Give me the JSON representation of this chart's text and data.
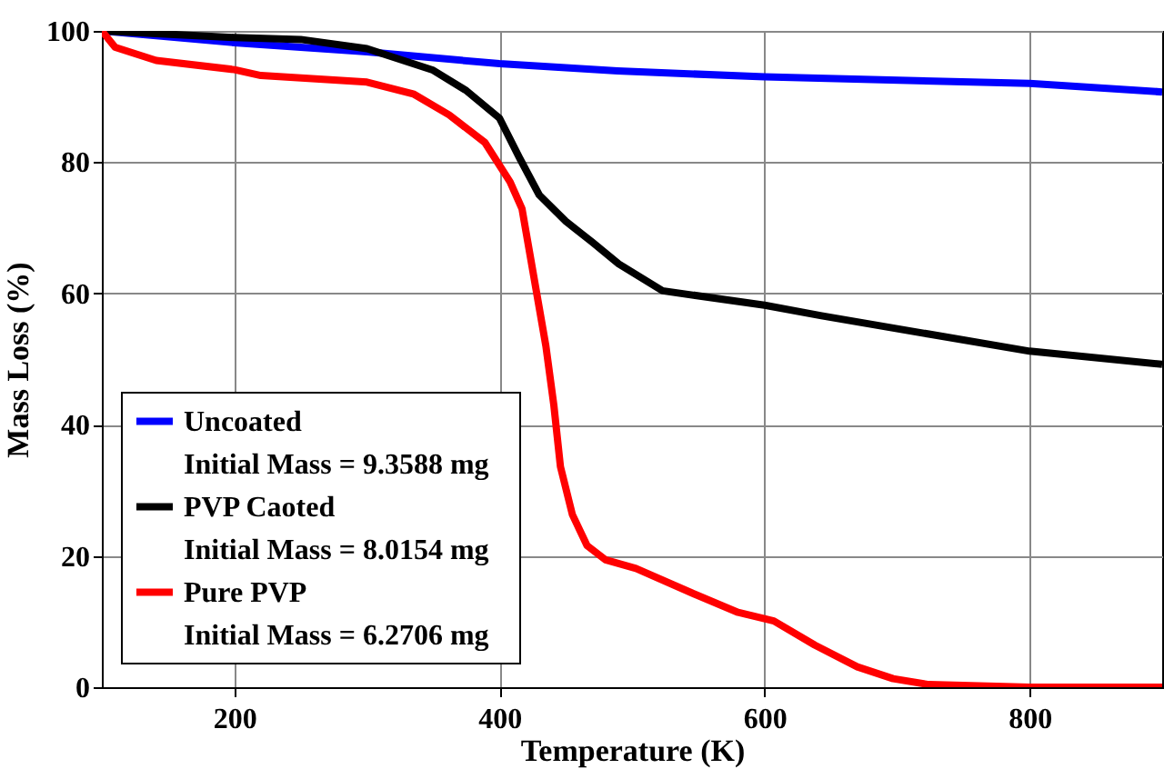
{
  "chart_data": {
    "type": "line",
    "xlabel": "Temperature (K)",
    "ylabel": "Mass Loss (%)",
    "xlim": [
      100,
      900
    ],
    "xticks": [
      200,
      400,
      600,
      800
    ],
    "ylim": [
      0,
      100
    ],
    "yticks": [
      0,
      20,
      40,
      60,
      80,
      100
    ],
    "grid": true,
    "legend": "bottom left",
    "annotations": [
      "Initial Mass = 9.3588 mg",
      "Initial Mass = 8.0154 mg",
      "Initial Mass = 6.2706 mg"
    ],
    "series": [
      {
        "name": "Uncoated",
        "color": "#0000ff",
        "x": [
          100,
          200,
          300,
          400,
          489,
          600,
          800,
          900
        ],
        "values": [
          100,
          98.2,
          96.8,
          95.0,
          93.9,
          93.0,
          92.0,
          90.7
        ]
      },
      {
        "name": "PVP Caoted",
        "color": "#000000",
        "x": [
          100,
          200,
          250,
          300,
          350,
          375,
          400,
          415,
          430,
          450,
          470,
          490,
          523,
          600,
          643,
          724,
          800,
          900
        ],
        "values": [
          100,
          99,
          98.7,
          97.3,
          94,
          90.9,
          86.7,
          80.7,
          75,
          71,
          67.8,
          64.5,
          60.4,
          58.2,
          56.6,
          53.8,
          51.2,
          49.2
        ]
      },
      {
        "name": "Pure PVP",
        "color": "#ff0000",
        "x": [
          100,
          110,
          141,
          200,
          220,
          300,
          335,
          362,
          389,
          408,
          417,
          435,
          441,
          446,
          455,
          466,
          480,
          503,
          547,
          580,
          607,
          638,
          670,
          697,
          724,
          800,
          900
        ],
        "values": [
          100,
          97.5,
          95.5,
          94.1,
          93.2,
          92.2,
          90.4,
          87.2,
          83,
          77,
          72.9,
          52,
          43,
          33.6,
          26.3,
          21.6,
          19.4,
          18.1,
          14.2,
          11.4,
          10.1,
          6.4,
          3.1,
          1.3,
          0.4,
          0,
          0
        ]
      }
    ]
  }
}
